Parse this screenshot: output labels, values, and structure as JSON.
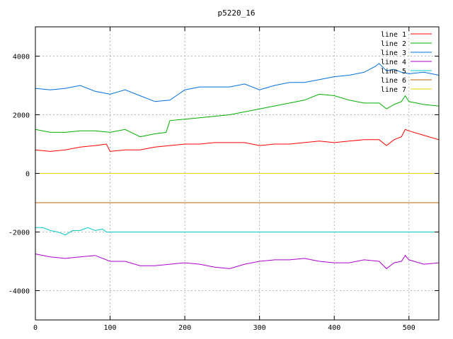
{
  "chart_data": {
    "type": "line",
    "title": "p5220_16",
    "xlabel": "",
    "ylabel": "",
    "xlim": [
      0,
      540
    ],
    "ylim": [
      -5000,
      5000
    ],
    "xticks": [
      0,
      100,
      200,
      300,
      400,
      500
    ],
    "yticks": [
      -4000,
      -2000,
      0,
      2000,
      4000
    ],
    "grid": true,
    "legend_position": "top-right",
    "series": [
      {
        "name": "line 1",
        "color": "#ff0000",
        "x": [
          0,
          20,
          40,
          60,
          80,
          95,
          100,
          120,
          140,
          160,
          180,
          200,
          220,
          240,
          260,
          280,
          300,
          320,
          340,
          360,
          380,
          400,
          420,
          440,
          460,
          470,
          480,
          490,
          495,
          500,
          520,
          540
        ],
        "y": [
          800,
          750,
          800,
          900,
          950,
          1000,
          750,
          800,
          800,
          900,
          950,
          1000,
          1000,
          1050,
          1050,
          1050,
          950,
          1000,
          1000,
          1050,
          1100,
          1050,
          1100,
          1150,
          1150,
          950,
          1150,
          1250,
          1500,
          1450,
          1300,
          1150
        ]
      },
      {
        "name": "line 2",
        "color": "#00b000",
        "x": [
          0,
          20,
          40,
          60,
          80,
          100,
          120,
          140,
          160,
          175,
          180,
          200,
          220,
          240,
          260,
          280,
          300,
          320,
          340,
          360,
          380,
          400,
          420,
          440,
          460,
          470,
          480,
          490,
          495,
          500,
          520,
          540
        ],
        "y": [
          1500,
          1400,
          1400,
          1450,
          1450,
          1400,
          1500,
          1250,
          1350,
          1400,
          1800,
          1850,
          1900,
          1950,
          2000,
          2100,
          2200,
          2300,
          2400,
          2500,
          2700,
          2650,
          2500,
          2400,
          2400,
          2200,
          2350,
          2450,
          2650,
          2450,
          2350,
          2300
        ]
      },
      {
        "name": "line 3",
        "color": "#0070e0",
        "x": [
          0,
          20,
          40,
          60,
          80,
          100,
          120,
          140,
          160,
          180,
          200,
          220,
          240,
          260,
          280,
          300,
          320,
          340,
          360,
          380,
          400,
          420,
          440,
          455,
          460,
          470,
          480,
          490,
          500,
          520,
          540
        ],
        "y": [
          2900,
          2850,
          2900,
          3000,
          2800,
          2700,
          2850,
          2650,
          2450,
          2500,
          2850,
          2950,
          2950,
          2950,
          3050,
          2850,
          3000,
          3100,
          3100,
          3200,
          3300,
          3350,
          3450,
          3650,
          3750,
          3500,
          3550,
          3450,
          3400,
          3450,
          3350
        ]
      },
      {
        "name": "line 4",
        "color": "#b000d0",
        "x": [
          0,
          20,
          40,
          60,
          80,
          100,
          120,
          140,
          160,
          180,
          200,
          220,
          240,
          260,
          280,
          300,
          320,
          340,
          360,
          380,
          400,
          420,
          440,
          460,
          470,
          480,
          490,
          495,
          500,
          520,
          540
        ],
        "y": [
          -2750,
          -2850,
          -2900,
          -2850,
          -2800,
          -3000,
          -3000,
          -3150,
          -3150,
          -3100,
          -3050,
          -3100,
          -3200,
          -3250,
          -3100,
          -3000,
          -2950,
          -2950,
          -2900,
          -3000,
          -3050,
          -3050,
          -2950,
          -3000,
          -3250,
          -3050,
          -3000,
          -2800,
          -2950,
          -3100,
          -3050
        ]
      },
      {
        "name": "line 5",
        "color": "#00c8c8",
        "x": [
          0,
          10,
          20,
          30,
          40,
          50,
          60,
          70,
          80,
          90,
          95,
          100,
          200,
          300,
          400,
          500,
          540
        ],
        "y": [
          -1850,
          -1850,
          -1950,
          -2000,
          -2100,
          -1950,
          -1950,
          -1850,
          -1950,
          -1900,
          -2000,
          -2000,
          -2000,
          -2000,
          -2000,
          -2000,
          -2000
        ]
      },
      {
        "name": "line 6",
        "color": "#c06000",
        "x": [
          0,
          540
        ],
        "y": [
          -1000,
          -1000
        ]
      },
      {
        "name": "line 7",
        "color": "#f0d000",
        "x": [
          0,
          540
        ],
        "y": [
          0,
          0
        ]
      }
    ]
  }
}
